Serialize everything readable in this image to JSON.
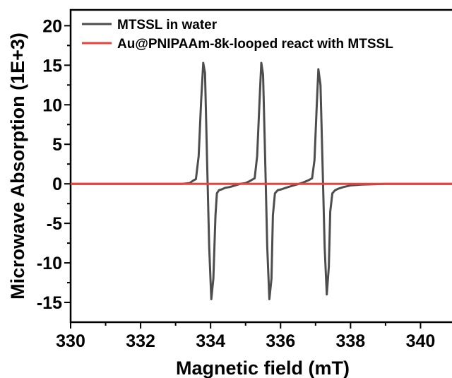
{
  "chart_data": {
    "type": "line",
    "xlabel": "Magnetic field (mT)",
    "ylabel": "Microwave Absorption (1E+3)",
    "xlim": [
      330,
      341
    ],
    "ylim": [
      -17.5,
      22
    ],
    "xticks": [
      330,
      332,
      334,
      336,
      338,
      340
    ],
    "yticks": [
      -15,
      -10,
      -5,
      0,
      5,
      10,
      15,
      20
    ],
    "xtick_labels": [
      "330",
      "332",
      "334",
      "336",
      "338",
      "340"
    ],
    "ytick_labels": [
      "-15",
      "-10",
      "-5",
      "0",
      "5",
      "10",
      "15",
      "20"
    ],
    "legend_position": "top-right",
    "grid": false,
    "series": [
      {
        "name": "MTSSL in water",
        "color": "#4d4d4d",
        "x": [
          330.0,
          332.0,
          333.2,
          333.4,
          333.5,
          333.58,
          333.66,
          333.73,
          333.79,
          333.84,
          333.9,
          333.96,
          334.02,
          334.08,
          334.14,
          334.18,
          334.24,
          334.32,
          334.42,
          334.55,
          334.7,
          334.85,
          335.0,
          335.1,
          335.18,
          335.26,
          335.33,
          335.4,
          335.45,
          335.5,
          335.56,
          335.62,
          335.68,
          335.74,
          335.78,
          335.84,
          335.92,
          336.02,
          336.15,
          336.3,
          336.45,
          336.6,
          336.72,
          336.82,
          336.9,
          336.97,
          337.03,
          337.08,
          337.14,
          337.2,
          337.26,
          337.32,
          337.38,
          337.42,
          337.48,
          337.56,
          337.66,
          337.8,
          338.0,
          338.3,
          339.0,
          341.0
        ],
        "y": [
          0.0,
          0.0,
          0.0,
          0.1,
          0.4,
          0.6,
          3.5,
          10.5,
          15.3,
          14.0,
          3.0,
          -8.0,
          -14.6,
          -12.0,
          -4.0,
          -1.2,
          -0.8,
          -0.7,
          -0.5,
          -0.4,
          -0.2,
          0.0,
          0.1,
          0.3,
          0.5,
          0.7,
          3.5,
          10.5,
          15.3,
          13.8,
          3.0,
          -8.0,
          -14.6,
          -12.0,
          -4.0,
          -1.2,
          -0.8,
          -0.7,
          -0.5,
          -0.3,
          -0.1,
          0.1,
          0.3,
          0.5,
          0.7,
          3.0,
          9.5,
          14.5,
          12.5,
          2.5,
          -8.0,
          -14.0,
          -10.5,
          -3.5,
          -1.2,
          -0.8,
          -0.6,
          -0.4,
          -0.2,
          -0.1,
          0.0,
          0.0
        ]
      },
      {
        "name": "Au@PNIPAAm-8k-looped react with MTSSL",
        "color": "#e8423b",
        "x": [
          330.0,
          341.0
        ],
        "y": [
          0.0,
          0.0
        ]
      }
    ]
  }
}
